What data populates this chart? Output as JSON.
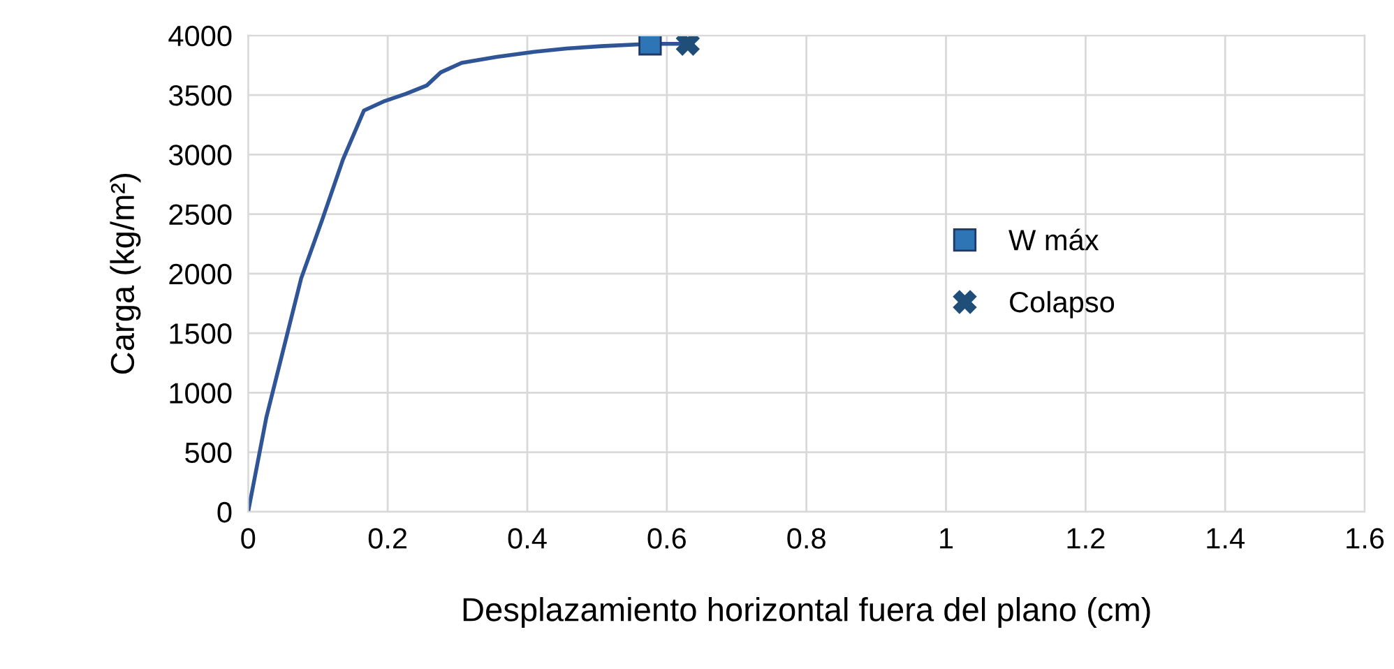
{
  "chart_data": {
    "type": "line",
    "xlabel": "Desplazamiento horizontal fuera del plano (cm)",
    "ylabel": "Carga (kg/m²)",
    "xlim": [
      0,
      1.6
    ],
    "xticks": [
      0,
      0.2,
      0.4,
      0.6,
      0.8,
      1,
      1.2,
      1.4,
      1.6
    ],
    "ylim": [
      0,
      4000
    ],
    "yticks": [
      0,
      500,
      1000,
      1500,
      2000,
      2500,
      3000,
      3500,
      4000
    ],
    "grid": true,
    "legend": "center right",
    "series": [
      {
        "color": "#2f5597",
        "marker": "none",
        "x": [
          0,
          0.026,
          0.076,
          0.106,
          0.136,
          0.166,
          0.196,
          0.226,
          0.256,
          0.276,
          0.306,
          0.356,
          0.406,
          0.456,
          0.506,
          0.576,
          0.63
        ],
        "values": [
          0,
          790,
          1960,
          2450,
          2960,
          3370,
          3450,
          3510,
          3580,
          3690,
          3770,
          3820,
          3860,
          3890,
          3910,
          3930,
          3930
        ]
      },
      {
        "type": "scatter",
        "name": "W máx",
        "color": "#2e75b6",
        "marker": "square",
        "x": [
          0.576
        ],
        "values": [
          3930
        ]
      },
      {
        "type": "scatter",
        "name": "Colapso",
        "color": "#1f4e79",
        "marker": "cross",
        "x": [
          0.63
        ],
        "values": [
          3930
        ]
      }
    ]
  }
}
